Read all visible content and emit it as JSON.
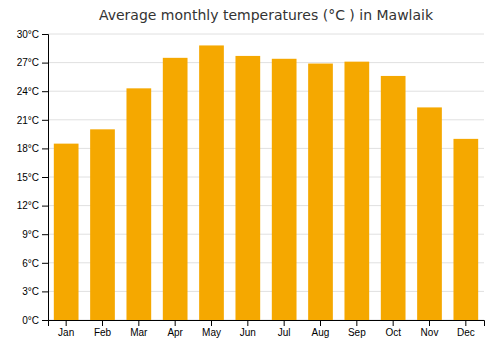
{
  "chart_data": {
    "type": "bar",
    "title": "Average monthly temperatures (°C ) in Mawlaik",
    "categories": [
      "Jan",
      "Feb",
      "Mar",
      "Apr",
      "May",
      "Jun",
      "Jul",
      "Aug",
      "Sep",
      "Oct",
      "Nov",
      "Dec"
    ],
    "values": [
      18.5,
      20.0,
      24.3,
      27.5,
      28.8,
      27.7,
      27.4,
      26.9,
      27.1,
      25.6,
      22.3,
      19.0
    ],
    "color": "#F5A800",
    "ylim": [
      0,
      30
    ],
    "yticks": [
      {
        "value": 0,
        "label": "0°C"
      },
      {
        "value": 3,
        "label": "3°C"
      },
      {
        "value": 6,
        "label": "6°C"
      },
      {
        "value": 9,
        "label": "9°C"
      },
      {
        "value": 12,
        "label": "12°C"
      },
      {
        "value": 15,
        "label": "15°C"
      },
      {
        "value": 18,
        "label": "18°C"
      },
      {
        "value": 21,
        "label": "21°C"
      },
      {
        "value": 24,
        "label": "24°C"
      },
      {
        "value": 27,
        "label": "27°C"
      },
      {
        "value": 30,
        "label": "30°C"
      }
    ],
    "grid": true
  }
}
